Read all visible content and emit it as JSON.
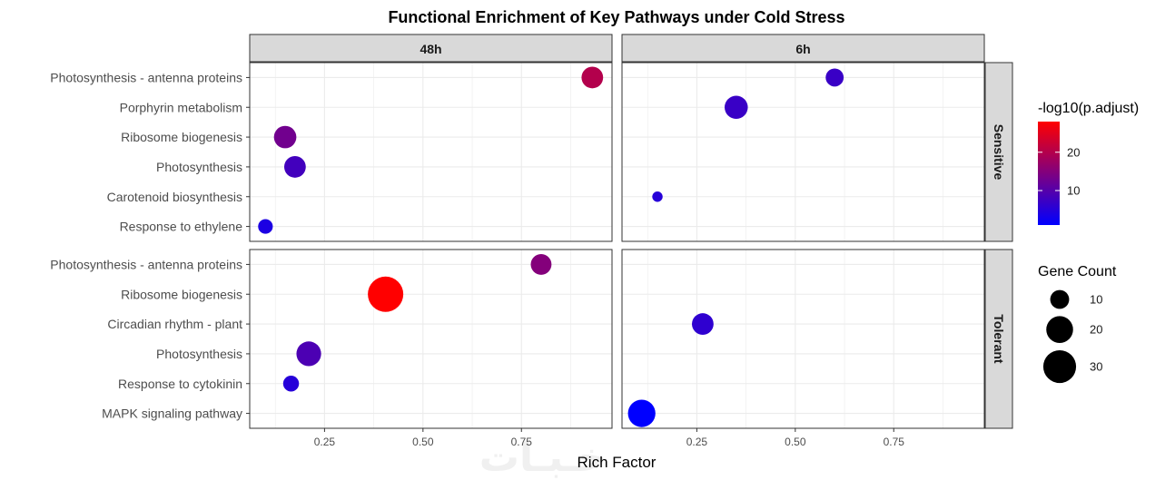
{
  "chart_data": {
    "type": "scatter",
    "title": "Functional Enrichment of Key Pathways under Cold Stress",
    "xlabel": "Rich Factor",
    "ylabel": "",
    "xlim": [
      0.06,
      0.98
    ],
    "x_ticks": [
      0.25,
      0.5,
      0.75
    ],
    "x_tick_labels": [
      "0.25",
      "0.50",
      "0.75"
    ],
    "facet_columns": [
      "48h",
      "6h"
    ],
    "facet_rows": [
      "Sensitive",
      "Tolerant"
    ],
    "row_categories": {
      "Sensitive": [
        "Photosynthesis - antenna proteins",
        "Porphyrin metabolism",
        "Ribosome biogenesis",
        "Photosynthesis",
        "Carotenoid biosynthesis",
        "Response to ethylene"
      ],
      "Tolerant": [
        "Photosynthesis - antenna proteins",
        "Ribosome biogenesis",
        "Circadian rhythm - plant",
        "Photosynthesis",
        "Response to cytokinin",
        "MAPK signaling pathway"
      ]
    },
    "points": [
      {
        "row": "Sensitive",
        "col": "48h",
        "term": "Photosynthesis - antenna proteins",
        "rich_factor": 0.93,
        "gene_count": 13,
        "neg_log10_padj": 20
      },
      {
        "row": "Sensitive",
        "col": "48h",
        "term": "Ribosome biogenesis",
        "rich_factor": 0.15,
        "gene_count": 14,
        "neg_log10_padj": 13
      },
      {
        "row": "Sensitive",
        "col": "48h",
        "term": "Photosynthesis",
        "rich_factor": 0.175,
        "gene_count": 13,
        "neg_log10_padj": 8
      },
      {
        "row": "Sensitive",
        "col": "48h",
        "term": "Response to ethylene",
        "rich_factor": 0.1,
        "gene_count": 6,
        "neg_log10_padj": 4
      },
      {
        "row": "Sensitive",
        "col": "6h",
        "term": "Photosynthesis - antenna proteins",
        "rich_factor": 0.6,
        "gene_count": 9,
        "neg_log10_padj": 7
      },
      {
        "row": "Sensitive",
        "col": "6h",
        "term": "Porphyrin metabolism",
        "rich_factor": 0.35,
        "gene_count": 15,
        "neg_log10_padj": 7
      },
      {
        "row": "Sensitive",
        "col": "6h",
        "term": "Carotenoid biosynthesis",
        "rich_factor": 0.15,
        "gene_count": 3,
        "neg_log10_padj": 5
      },
      {
        "row": "Tolerant",
        "col": "48h",
        "term": "Photosynthesis - antenna proteins",
        "rich_factor": 0.8,
        "gene_count": 12,
        "neg_log10_padj": 15
      },
      {
        "row": "Tolerant",
        "col": "48h",
        "term": "Ribosome biogenesis",
        "rich_factor": 0.405,
        "gene_count": 35,
        "neg_log10_padj": 28
      },
      {
        "row": "Tolerant",
        "col": "48h",
        "term": "Photosynthesis",
        "rich_factor": 0.21,
        "gene_count": 17,
        "neg_log10_padj": 9
      },
      {
        "row": "Tolerant",
        "col": "48h",
        "term": "Response to cytokinin",
        "rich_factor": 0.165,
        "gene_count": 7,
        "neg_log10_padj": 5
      },
      {
        "row": "Tolerant",
        "col": "6h",
        "term": "Circadian rhythm - plant",
        "rich_factor": 0.265,
        "gene_count": 13,
        "neg_log10_padj": 6
      },
      {
        "row": "Tolerant",
        "col": "6h",
        "term": "MAPK signaling pathway",
        "rich_factor": 0.11,
        "gene_count": 21,
        "neg_log10_padj": 1
      }
    ],
    "color_legend": {
      "title": "-log10(p.adjust)",
      "min": 1,
      "max": 28,
      "low_color": "#0000ff",
      "high_color": "#ff0000",
      "ticks": [
        10,
        20
      ],
      "tick_labels": [
        "10",
        "20"
      ]
    },
    "size_legend": {
      "title": "Gene Count",
      "values": [
        10,
        20,
        30
      ],
      "labels": [
        "10",
        "20",
        "30"
      ]
    }
  },
  "watermark": "خـبـات"
}
